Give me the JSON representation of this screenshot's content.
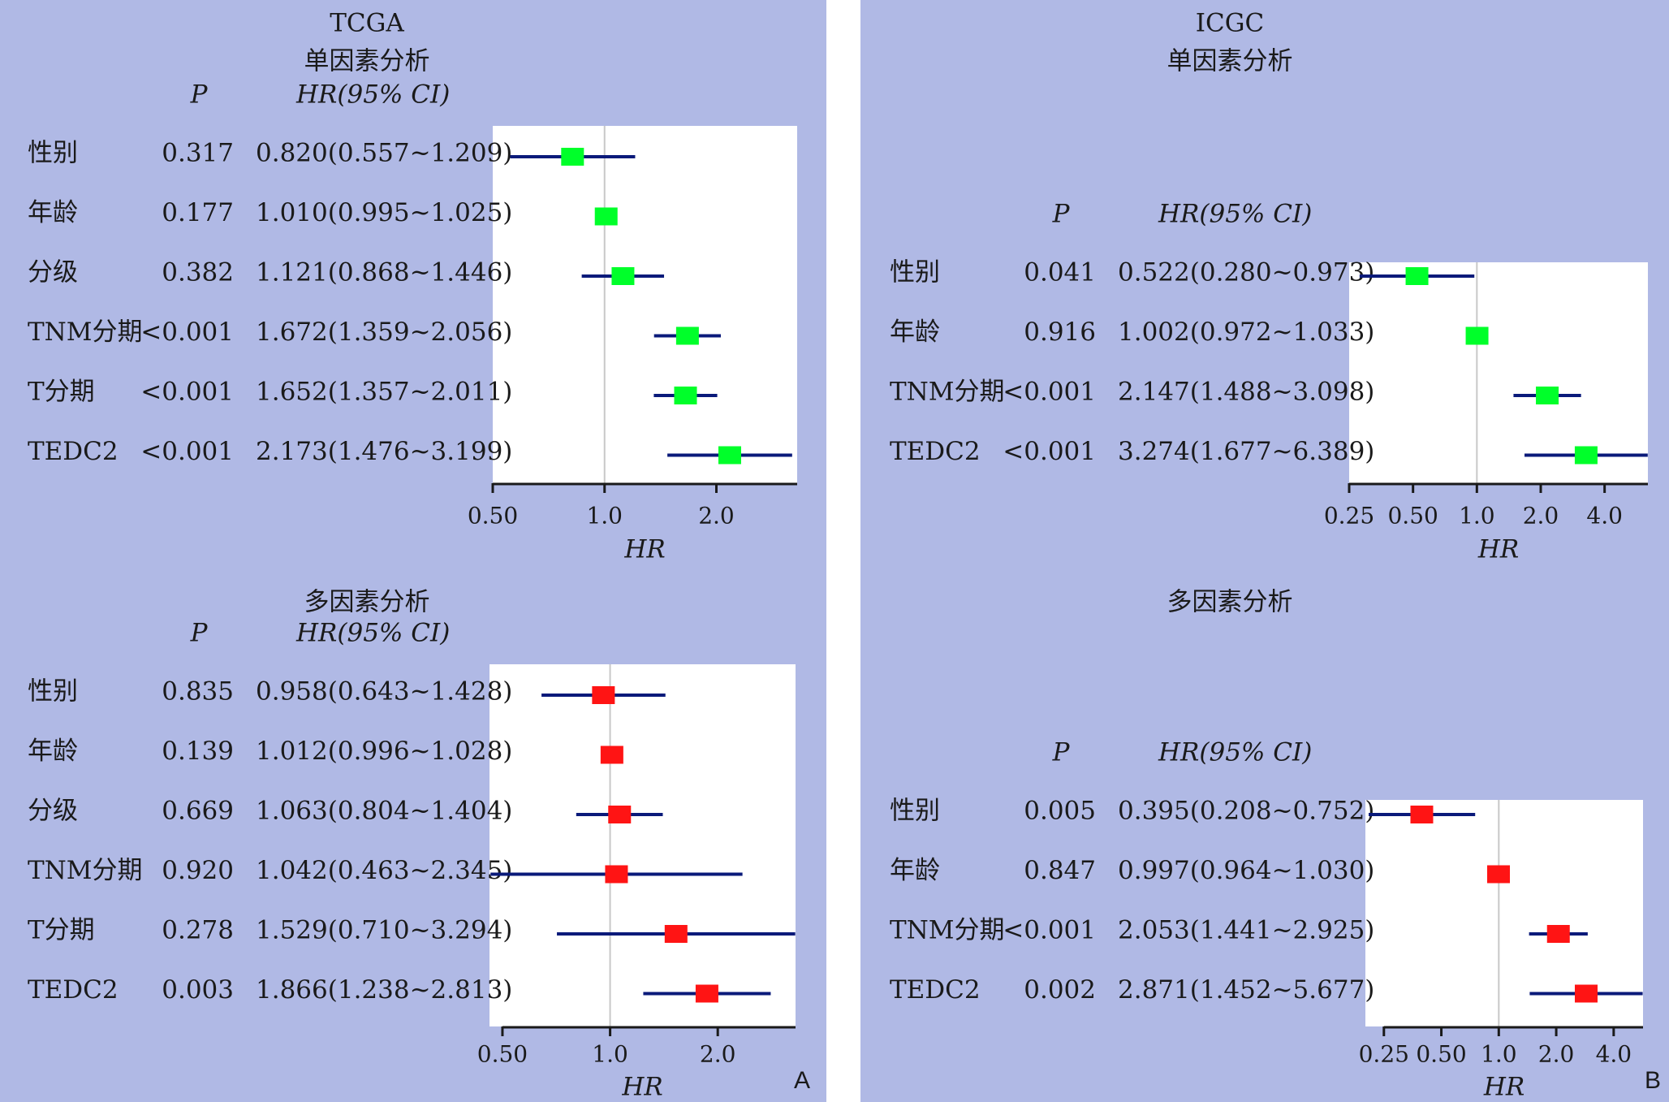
{
  "chart_data": [
    {
      "id": "tcga-uni",
      "type": "forest",
      "dataset": "TCGA",
      "title": "单因素分析",
      "p_header": "P",
      "hr_header": "HR(95% CI)",
      "xlabel": "HR",
      "x_scale": "log",
      "xlim": [
        0.5,
        3.3
      ],
      "xticks": [
        {
          "value": 0.5,
          "label": "0.50"
        },
        {
          "value": 1.0,
          "label": "1.0"
        },
        {
          "value": 2.0,
          "label": "2.0"
        }
      ],
      "reference_line": 1.0,
      "marker_color": "#00ff2a",
      "rows": [
        {
          "label": "性别",
          "p": "0.317",
          "hr_text": "0.820(0.557~1.209)",
          "hr": 0.82,
          "lo": 0.557,
          "hi": 1.209
        },
        {
          "label": "年龄",
          "p": "0.177",
          "hr_text": "1.010(0.995~1.025)",
          "hr": 1.01,
          "lo": 0.995,
          "hi": 1.025
        },
        {
          "label": "分级",
          "p": "0.382",
          "hr_text": "1.121(0.868~1.446)",
          "hr": 1.121,
          "lo": 0.868,
          "hi": 1.446
        },
        {
          "label": "TNM分期",
          "p": "<0.001",
          "hr_text": "1.672(1.359~2.056)",
          "hr": 1.672,
          "lo": 1.359,
          "hi": 2.056
        },
        {
          "label": "T分期",
          "p": "<0.001",
          "hr_text": "1.652(1.357~2.011)",
          "hr": 1.652,
          "lo": 1.357,
          "hi": 2.011
        },
        {
          "label": "TEDC2",
          "p": "<0.001",
          "hr_text": "2.173(1.476~3.199)",
          "hr": 2.173,
          "lo": 1.476,
          "hi": 3.199
        }
      ]
    },
    {
      "id": "tcga-multi",
      "type": "forest",
      "dataset": "",
      "title": "多因素分析",
      "p_header": "P",
      "hr_header": "HR(95% CI)",
      "xlabel": "HR",
      "x_scale": "log",
      "xlim": [
        0.46,
        3.3
      ],
      "xticks": [
        {
          "value": 0.5,
          "label": "0.50"
        },
        {
          "value": 1.0,
          "label": "1.0"
        },
        {
          "value": 2.0,
          "label": "2.0"
        }
      ],
      "reference_line": 1.0,
      "marker_color": "#ff1414",
      "rows": [
        {
          "label": "性别",
          "p": "0.835",
          "hr_text": "0.958(0.643~1.428)",
          "hr": 0.958,
          "lo": 0.643,
          "hi": 1.428
        },
        {
          "label": "年龄",
          "p": "0.139",
          "hr_text": "1.012(0.996~1.028)",
          "hr": 1.012,
          "lo": 0.996,
          "hi": 1.028
        },
        {
          "label": "分级",
          "p": "0.669",
          "hr_text": "1.063(0.804~1.404)",
          "hr": 1.063,
          "lo": 0.804,
          "hi": 1.404
        },
        {
          "label": "TNM分期",
          "p": "0.920",
          "hr_text": "1.042(0.463~2.345)",
          "hr": 1.042,
          "lo": 0.463,
          "hi": 2.345
        },
        {
          "label": "T分期",
          "p": "0.278",
          "hr_text": "1.529(0.710~3.294)",
          "hr": 1.529,
          "lo": 0.71,
          "hi": 3.294
        },
        {
          "label": "TEDC2",
          "p": "0.003",
          "hr_text": "1.866(1.238~2.813)",
          "hr": 1.866,
          "lo": 1.238,
          "hi": 2.813
        }
      ]
    },
    {
      "id": "icgc-uni",
      "type": "forest",
      "dataset": "ICGC",
      "title": "单因素分析",
      "p_header": "P",
      "hr_header": "HR(95% CI)",
      "xlabel": "HR",
      "x_scale": "log",
      "xlim": [
        0.25,
        6.4
      ],
      "xticks": [
        {
          "value": 0.25,
          "label": "0.25"
        },
        {
          "value": 0.5,
          "label": "0.50"
        },
        {
          "value": 1.0,
          "label": "1.0"
        },
        {
          "value": 2.0,
          "label": "2.0"
        },
        {
          "value": 4.0,
          "label": "4.0"
        }
      ],
      "reference_line": 1.0,
      "marker_color": "#00ff2a",
      "rows": [
        {
          "label": "性别",
          "p": "0.041",
          "hr_text": "0.522(0.280~0.973)",
          "hr": 0.522,
          "lo": 0.28,
          "hi": 0.973
        },
        {
          "label": "年龄",
          "p": "0.916",
          "hr_text": "1.002(0.972~1.033)",
          "hr": 1.002,
          "lo": 0.972,
          "hi": 1.033
        },
        {
          "label": "TNM分期",
          "p": "<0.001",
          "hr_text": "2.147(1.488~3.098)",
          "hr": 2.147,
          "lo": 1.488,
          "hi": 3.098
        },
        {
          "label": "TEDC2",
          "p": "<0.001",
          "hr_text": "3.274(1.677~6.389)",
          "hr": 3.274,
          "lo": 1.677,
          "hi": 6.389
        }
      ]
    },
    {
      "id": "icgc-multi",
      "type": "forest",
      "dataset": "",
      "title": "多因素分析",
      "p_header": "P",
      "hr_header": "HR(95% CI)",
      "xlabel": "HR",
      "x_scale": "log",
      "xlim": [
        0.2,
        5.7
      ],
      "xticks": [
        {
          "value": 0.25,
          "label": "0.25"
        },
        {
          "value": 0.5,
          "label": "0.50"
        },
        {
          "value": 1.0,
          "label": "1.0"
        },
        {
          "value": 2.0,
          "label": "2.0"
        },
        {
          "value": 4.0,
          "label": "4.0"
        }
      ],
      "reference_line": 1.0,
      "marker_color": "#ff1414",
      "rows": [
        {
          "label": "性别",
          "p": "0.005",
          "hr_text": "0.395(0.208~0.752)",
          "hr": 0.395,
          "lo": 0.208,
          "hi": 0.752
        },
        {
          "label": "年龄",
          "p": "0.847",
          "hr_text": "0.997(0.964~1.030)",
          "hr": 0.997,
          "lo": 0.964,
          "hi": 1.03
        },
        {
          "label": "TNM分期",
          "p": "<0.001",
          "hr_text": "2.053(1.441~2.925)",
          "hr": 2.053,
          "lo": 1.441,
          "hi": 2.925
        },
        {
          "label": "TEDC2",
          "p": "0.002",
          "hr_text": "2.871(1.452~5.677)",
          "hr": 2.871,
          "lo": 1.452,
          "hi": 5.677
        }
      ]
    }
  ],
  "panel_labels": {
    "a": "A",
    "b": "B"
  },
  "colors": {
    "panel_background": "#b0b9e5",
    "plot_background": "#ffffff",
    "ci_line": "#0a1a7a",
    "reference_line": "#c8c8c8",
    "axis": "#1a1a1a"
  }
}
